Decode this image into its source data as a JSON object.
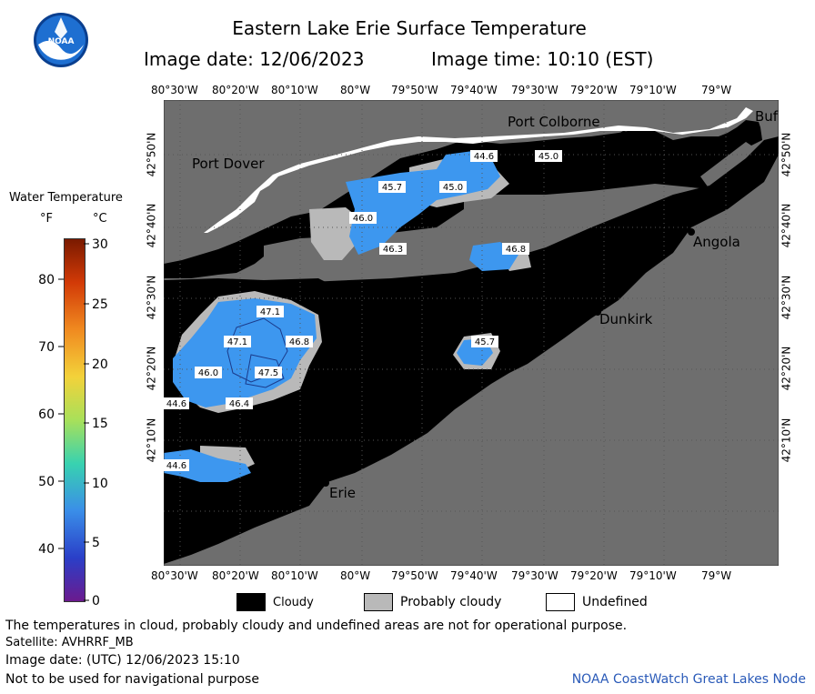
{
  "header": {
    "title": "Eastern Lake Erie Surface Temperature",
    "image_date": "Image date: 12/06/2023",
    "image_time": "Image time: 10:10 (EST)"
  },
  "colorbar": {
    "title": "Water Temperature",
    "unit_f": "°F",
    "unit_c": "°C",
    "f_ticks": [
      "80",
      "70",
      "60",
      "50",
      "40"
    ],
    "c_ticks": [
      "30",
      "25",
      "20",
      "15",
      "10",
      "5",
      "0"
    ]
  },
  "map": {
    "lon_labels": [
      "80°30'W",
      "80°20'W",
      "80°10'W",
      "80°W",
      "79°50'W",
      "79°40'W",
      "79°30'W",
      "79°20'W",
      "79°10'W",
      "79°W"
    ],
    "lat_labels": [
      "42°50'N",
      "42°40'N",
      "42°30'N",
      "42°20'N",
      "42°10'N"
    ],
    "places": [
      "Port Colborne",
      "Port Dover",
      "Angola",
      "Dunkirk",
      "Erie",
      "Buf"
    ],
    "temperature_labels": [
      "44.6",
      "45.0",
      "45.7",
      "45.0",
      "46.0",
      "46.3",
      "46.8",
      "47.1",
      "47.1",
      "46.8",
      "46.0",
      "47.5",
      "46.4",
      "44.6",
      "45.7",
      "44.6"
    ],
    "colors": {
      "land": "#6e6e6e",
      "cloud": "#000000",
      "probably_cloudy": "#b9b9b9",
      "undefined": "#ffffff",
      "water_warm": "#3d97ef",
      "water_cool": "#2a72e0"
    }
  },
  "legend": {
    "cloudy": "Cloudy",
    "probably_cloudy": "Probably cloudy",
    "undefined": "Undefined"
  },
  "footer": {
    "note": "The temperatures in cloud, probably cloudy and undefined areas are not for operational purpose.",
    "satellite": "Satellite: AVHRRF_MB",
    "utc": "Image date: (UTC) 12/06/2023  15:10",
    "nav": "Not to be used for navigational purpose",
    "credit": "NOAA CoastWatch Great Lakes Node"
  }
}
